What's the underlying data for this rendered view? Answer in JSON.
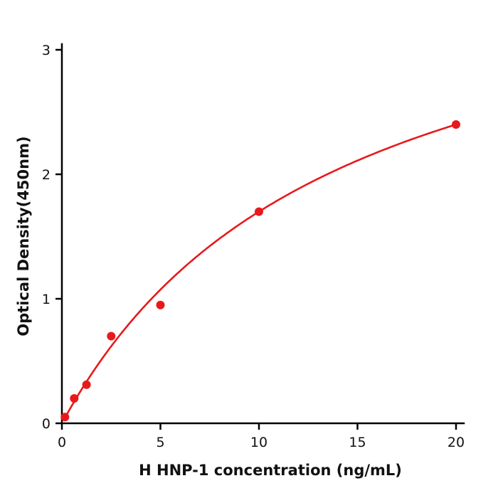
{
  "chart_data": {
    "type": "scatter",
    "title": "",
    "xlabel": "H  HNP-1 concentration (ng/mL)",
    "ylabel": "Optical Density(450nm)",
    "x": [
      0.156,
      0.625,
      1.25,
      2.5,
      5,
      10,
      20
    ],
    "y": [
      0.05,
      0.2,
      0.31,
      0.7,
      0.95,
      1.7,
      2.4
    ],
    "fit": {
      "model": "saturation y=a*x/(b+x)",
      "a": 4.08,
      "b": 14
    },
    "xlim": [
      0,
      20.5
    ],
    "ylim": [
      0,
      3
    ],
    "xticks": [
      0,
      5,
      10,
      15,
      20
    ],
    "yticks": [
      0,
      1,
      2,
      3
    ],
    "grid": false,
    "legend": "none",
    "point_color": "#e8191c",
    "line_color": "#e8191c",
    "axis_color": "#000000"
  }
}
